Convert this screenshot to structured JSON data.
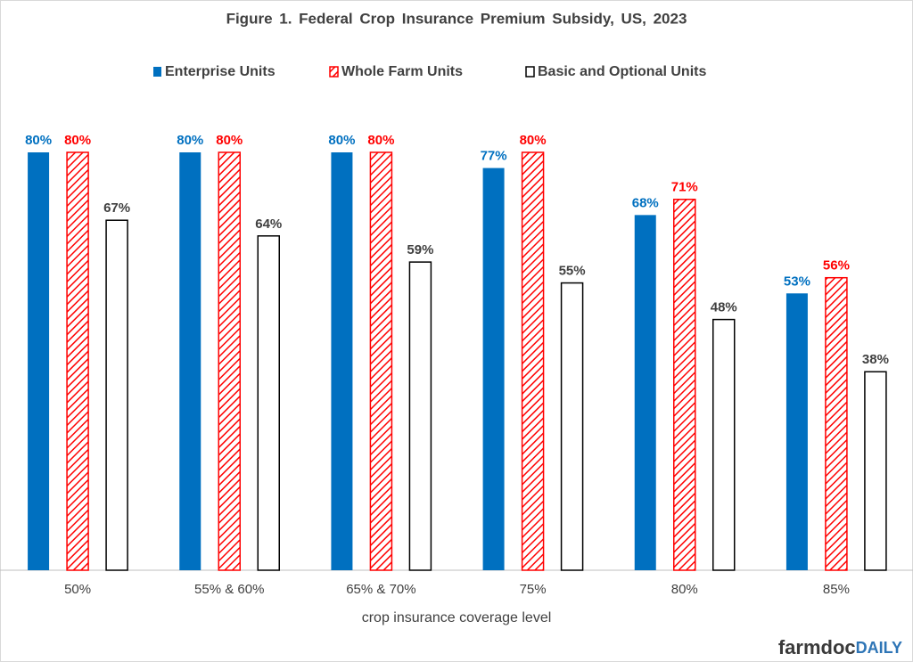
{
  "chart_data": {
    "type": "bar",
    "title": "Figure 1. Federal Crop Insurance Premium Subsidy, US, 2023",
    "x_label": "crop insurance coverage level",
    "categories": [
      "50%",
      "55% & 60%",
      "65% & 70%",
      "75%",
      "80%",
      "85%"
    ],
    "series": [
      {
        "name": "Enterprise Units",
        "color": "#0070c0",
        "pattern": "solid",
        "label_color": "#0070c0",
        "values": [
          80,
          80,
          80,
          77,
          68,
          53
        ],
        "value_labels": [
          "80%",
          "80%",
          "80%",
          "77%",
          "68%",
          "53%"
        ]
      },
      {
        "name": "Whole Farm Units",
        "color": "#ff0000",
        "pattern": "hatch",
        "label_color": "#ff0000",
        "values": [
          80,
          80,
          80,
          80,
          71,
          56
        ],
        "value_labels": [
          "80%",
          "80%",
          "80%",
          "80%",
          "71%",
          "56%"
        ]
      },
      {
        "name": "Basic and Optional Units",
        "color": "#000000",
        "pattern": "outline",
        "label_color": "#404040",
        "values": [
          67,
          64,
          59,
          55,
          48,
          38
        ],
        "value_labels": [
          "67%",
          "64%",
          "59%",
          "55%",
          "48%",
          "38%"
        ]
      }
    ],
    "legend": "top",
    "logo": {
      "text": "farmdoc",
      "accent": "DAILY"
    }
  }
}
